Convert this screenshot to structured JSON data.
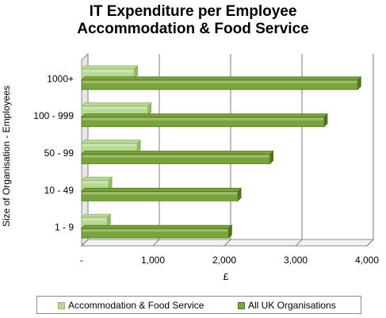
{
  "title_line1": "IT Expenditure per Employee",
  "title_line2": "Accommodation & Food Service",
  "colors": {
    "accommodation": "#b9d896",
    "accommodation_dark": "#8fb866",
    "all_uk": "#7aa43a",
    "all_uk_dark": "#4f7420",
    "grid": "#7f7f7f"
  },
  "chart_data": {
    "type": "bar",
    "orientation": "horizontal",
    "title": "IT Expenditure per Employee Accommodation & Food Service",
    "xlabel": "£",
    "ylabel": "Size of Organisation - Employees",
    "categories": [
      "1 - 9",
      "10 - 49",
      "50 - 99",
      "100 - 999",
      "1000+"
    ],
    "xlim": [
      0,
      4000
    ],
    "xticks": [
      0,
      1000,
      2000,
      3000,
      4000
    ],
    "xtick_labels": [
      "-",
      "1,000",
      "2,000",
      "3,000",
      "4,000"
    ],
    "grid": true,
    "legend_position": "bottom",
    "series": [
      {
        "name": "Accommodation & Food Service",
        "values": [
          360,
          380,
          780,
          930,
          740
        ]
      },
      {
        "name": "All UK Organisations",
        "values": [
          2060,
          2190,
          2640,
          3400,
          3870
        ]
      }
    ]
  }
}
